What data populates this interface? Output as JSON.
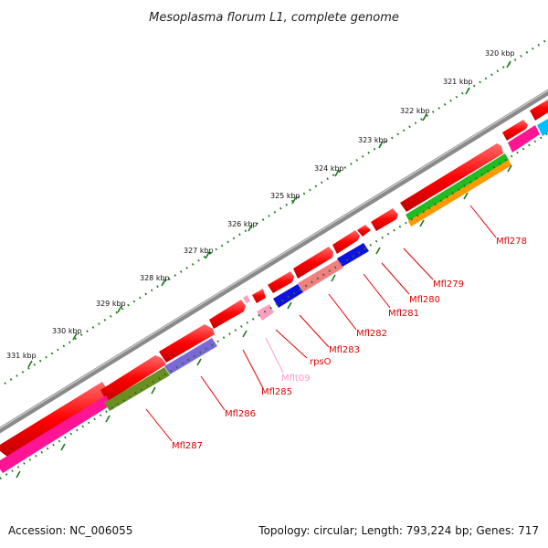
{
  "title": "Mesoplasma florum L1, complete genome",
  "footer": {
    "accession": "Accession: NC_006055",
    "summary": "Topology: circular; Length: 793,224 bp; Genes: 717"
  },
  "colors": {
    "backbone": "#8a8a8a",
    "tick": "#1a7a1a",
    "forward_gene": "#ff0000",
    "reverse_gene": "#ff1493",
    "rna": "#ff9ec2",
    "rrna_blue": "#1010e0",
    "cog_green": "#22bb22",
    "cog_orange": "#ff9900",
    "cog_olive": "#6b8e23",
    "cog_purple": "#7b68d8",
    "cog_pink": "#f08080",
    "cyan": "#00bfff"
  },
  "scale_ticks": [
    {
      "label": "320 kbp"
    },
    {
      "label": "321 kbp"
    },
    {
      "label": "322 kbp"
    },
    {
      "label": "323 kbp"
    },
    {
      "label": "324 kbp"
    },
    {
      "label": "325 kbp"
    },
    {
      "label": "326 kbp"
    },
    {
      "label": "327 kbp"
    },
    {
      "label": "328 kbp"
    },
    {
      "label": "329 kbp"
    },
    {
      "label": "330 kbp"
    },
    {
      "label": "331 kbp"
    }
  ],
  "gene_labels": [
    {
      "text": "Mfl278",
      "color": "#dd0000"
    },
    {
      "text": "Mfl279",
      "color": "#dd0000"
    },
    {
      "text": "Mfl280",
      "color": "#dd0000"
    },
    {
      "text": "Mfl281",
      "color": "#dd0000"
    },
    {
      "text": "Mfl282",
      "color": "#dd0000"
    },
    {
      "text": "Mfl283",
      "color": "#dd0000"
    },
    {
      "text": "rpsO",
      "color": "#dd0000"
    },
    {
      "text": "Mflt09",
      "color": "#ff99cc"
    },
    {
      "text": "Mfl285",
      "color": "#dd0000"
    },
    {
      "text": "Mfl286",
      "color": "#dd0000"
    },
    {
      "text": "Mfl287",
      "color": "#dd0000"
    }
  ]
}
